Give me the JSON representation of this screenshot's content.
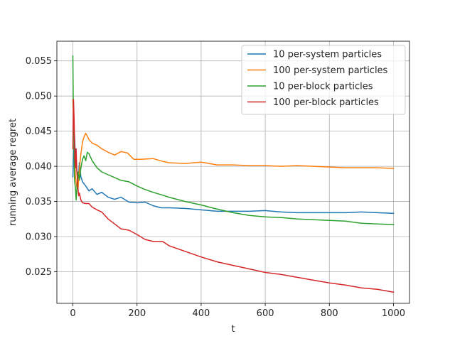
{
  "chart_data": {
    "type": "line",
    "title": "",
    "xlabel": "t",
    "ylabel": "running average regret",
    "xlim": [
      -50,
      1050
    ],
    "ylim": [
      0.0205,
      0.0578
    ],
    "xticks": [
      0,
      200,
      400,
      600,
      800,
      1000
    ],
    "yticks": [
      0.025,
      0.03,
      0.035,
      0.04,
      0.045,
      0.05,
      0.055
    ],
    "ytick_labels": [
      "0.025",
      "0.030",
      "0.035",
      "0.040",
      "0.045",
      "0.050",
      "0.055"
    ],
    "grid": true,
    "legend_position": "top-right",
    "series": [
      {
        "name": "10 per-system particles",
        "color": "#1f77b4",
        "x": [
          0,
          2,
          5,
          8,
          12,
          16,
          20,
          25,
          30,
          40,
          50,
          60,
          75,
          90,
          110,
          130,
          150,
          175,
          200,
          225,
          250,
          275,
          300,
          350,
          400,
          450,
          500,
          550,
          600,
          650,
          700,
          750,
          800,
          850,
          900,
          950,
          1000
        ],
        "y": [
          0.0385,
          0.0415,
          0.0445,
          0.041,
          0.0395,
          0.0375,
          0.0405,
          0.0385,
          0.0378,
          0.0372,
          0.0365,
          0.0368,
          0.036,
          0.0363,
          0.0356,
          0.0353,
          0.0356,
          0.0349,
          0.0348,
          0.0349,
          0.0344,
          0.0341,
          0.0341,
          0.034,
          0.0338,
          0.0336,
          0.0336,
          0.0336,
          0.0337,
          0.0335,
          0.0334,
          0.0334,
          0.0334,
          0.0334,
          0.0335,
          0.0334,
          0.0333
        ]
      },
      {
        "name": "100 per-system particles",
        "color": "#ff7f0e",
        "x": [
          0,
          2,
          5,
          8,
          12,
          16,
          20,
          25,
          30,
          35,
          40,
          45,
          50,
          60,
          75,
          90,
          110,
          130,
          150,
          170,
          190,
          210,
          250,
          280,
          300,
          350,
          400,
          450,
          500,
          550,
          600,
          650,
          700,
          750,
          800,
          850,
          900,
          950,
          1000
        ],
        "y": [
          0.0495,
          0.0465,
          0.042,
          0.0385,
          0.037,
          0.0368,
          0.0395,
          0.0418,
          0.0435,
          0.0442,
          0.0447,
          0.0443,
          0.0438,
          0.0433,
          0.043,
          0.0425,
          0.042,
          0.0416,
          0.0421,
          0.0419,
          0.041,
          0.041,
          0.0411,
          0.0407,
          0.0405,
          0.0404,
          0.0406,
          0.0402,
          0.0402,
          0.0401,
          0.0401,
          0.04,
          0.0401,
          0.04,
          0.0399,
          0.0398,
          0.0398,
          0.0398,
          0.0397
        ]
      },
      {
        "name": "10 per-block particles",
        "color": "#2ca02c",
        "x": [
          0,
          1,
          3,
          5,
          8,
          10,
          13,
          16,
          20,
          25,
          30,
          35,
          40,
          45,
          50,
          60,
          75,
          90,
          110,
          130,
          150,
          175,
          200,
          225,
          250,
          280,
          300,
          350,
          400,
          450,
          500,
          550,
          600,
          650,
          700,
          750,
          800,
          850,
          900,
          950,
          1000
        ],
        "y": [
          0.0557,
          0.0495,
          0.045,
          0.038,
          0.0368,
          0.0352,
          0.0372,
          0.0392,
          0.038,
          0.0398,
          0.041,
          0.0415,
          0.0408,
          0.042,
          0.0418,
          0.0408,
          0.0398,
          0.0392,
          0.0388,
          0.0384,
          0.038,
          0.0378,
          0.0372,
          0.0367,
          0.0363,
          0.0359,
          0.0356,
          0.035,
          0.0345,
          0.0339,
          0.0334,
          0.033,
          0.0328,
          0.0327,
          0.0325,
          0.0324,
          0.0323,
          0.0322,
          0.0319,
          0.0318,
          0.0317
        ]
      },
      {
        "name": "100 per-block particles",
        "color": "#d62728",
        "x": [
          0,
          2,
          4,
          6,
          8,
          10,
          12,
          15,
          18,
          20,
          25,
          30,
          40,
          50,
          60,
          75,
          90,
          110,
          130,
          150,
          175,
          200,
          225,
          250,
          280,
          300,
          350,
          400,
          450,
          500,
          550,
          600,
          650,
          700,
          750,
          800,
          850,
          900,
          950,
          1000
        ],
        "y": [
          0.0425,
          0.0495,
          0.0465,
          0.041,
          0.0398,
          0.0425,
          0.0395,
          0.0372,
          0.0358,
          0.0362,
          0.0352,
          0.0348,
          0.0347,
          0.0347,
          0.0342,
          0.0338,
          0.0335,
          0.0325,
          0.0318,
          0.0311,
          0.0309,
          0.0303,
          0.0296,
          0.0293,
          0.0293,
          0.0287,
          0.0279,
          0.0271,
          0.0264,
          0.0259,
          0.0254,
          0.0249,
          0.0246,
          0.0242,
          0.0238,
          0.0234,
          0.0231,
          0.0227,
          0.0225,
          0.0221
        ]
      }
    ]
  }
}
